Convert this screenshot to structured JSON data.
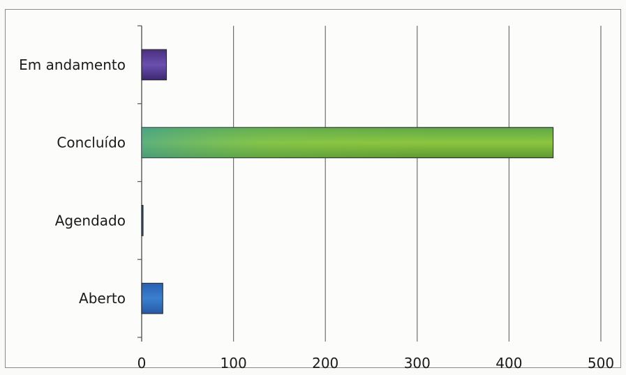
{
  "chart_data": {
    "type": "bar",
    "orientation": "horizontal",
    "categories": [
      "Em andamento",
      "Concluído",
      "Agendado",
      "Aberto"
    ],
    "values": [
      27,
      448,
      1,
      23
    ],
    "xlim": [
      0,
      500
    ],
    "x_ticks": [
      "0",
      "100",
      "200",
      "300",
      "400",
      "500"
    ],
    "grid": "vertical",
    "bar_colors": [
      "#5a3f9a",
      "#7fbf3a",
      "#2a5a9a",
      "#2f6cc4"
    ],
    "title": "",
    "xlabel": "",
    "ylabel": ""
  }
}
